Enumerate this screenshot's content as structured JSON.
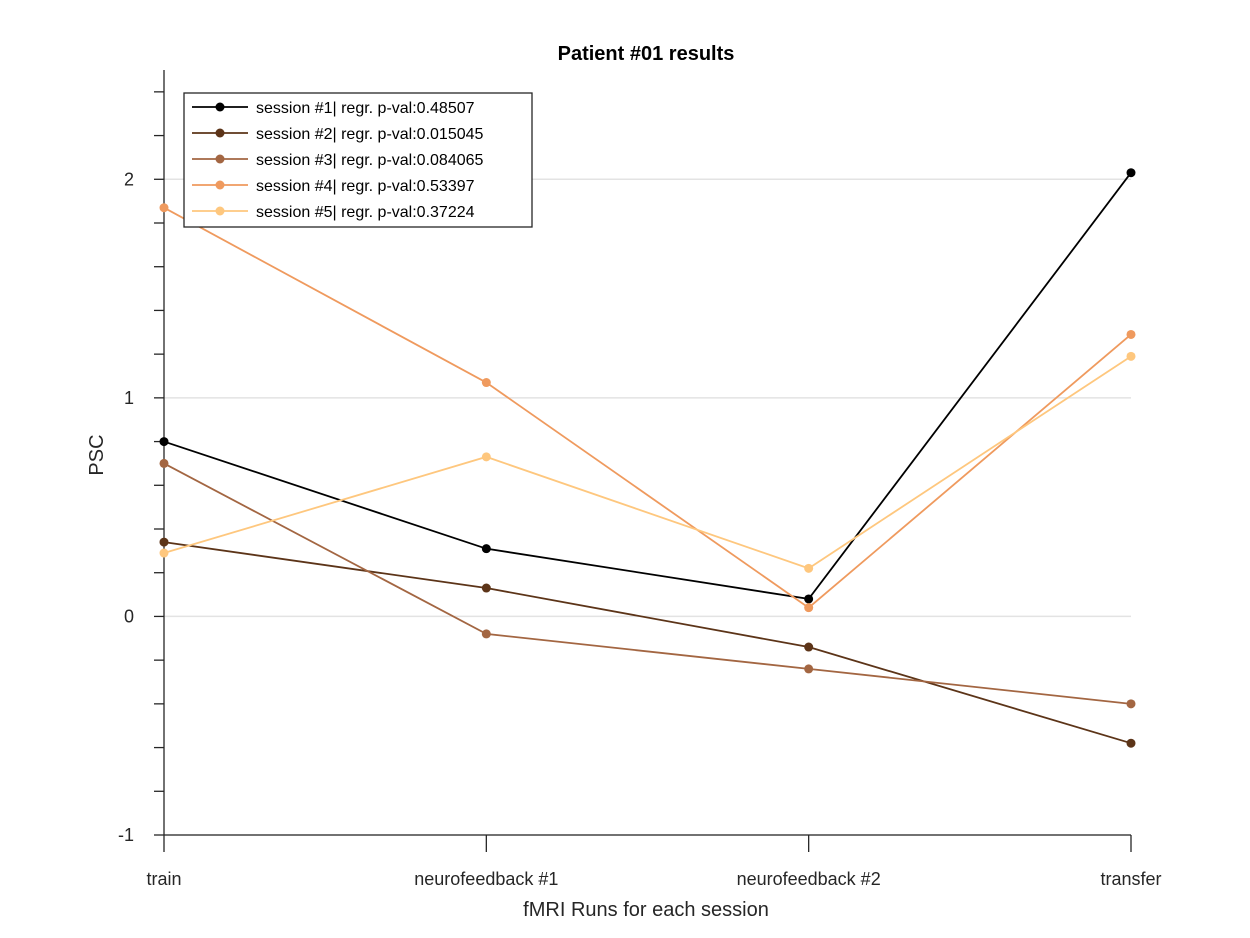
{
  "chart_data": {
    "type": "line",
    "title": "Patient #01 results",
    "xlabel": "fMRI Runs for each session",
    "ylabel": "PSC",
    "categories": [
      "train",
      "neurofeedback #1",
      "neurofeedback #2",
      "transfer"
    ],
    "ylim": [
      -1,
      2.5
    ],
    "yticks": [
      -1,
      0,
      1,
      2
    ],
    "yticks_minor": [
      -0.8,
      -0.6,
      -0.4,
      -0.2,
      0.2,
      0.4,
      0.6,
      0.8,
      1.2,
      1.4,
      1.6,
      1.8,
      2.2,
      2.4
    ],
    "grid": "horizontal at major y ticks",
    "legend_position": "top-left",
    "series": [
      {
        "name": "session #1| regr. p-val:0.48507",
        "color": "#000000",
        "values": [
          0.8,
          0.31,
          0.08,
          2.03
        ]
      },
      {
        "name": "session #2| regr. p-val:0.015045",
        "color": "#5c3418",
        "values": [
          0.34,
          0.13,
          -0.14,
          -0.58
        ]
      },
      {
        "name": "session #3| regr. p-val:0.084065",
        "color": "#a36642",
        "values": [
          0.7,
          -0.08,
          -0.24,
          -0.4
        ]
      },
      {
        "name": "session #4| regr. p-val:0.53397",
        "color": "#ef9a5e",
        "values": [
          1.87,
          1.07,
          0.04,
          1.29
        ]
      },
      {
        "name": "session #5| regr. p-val:0.37224",
        "color": "#fec77e",
        "values": [
          0.29,
          0.73,
          0.22,
          1.19
        ]
      }
    ]
  }
}
